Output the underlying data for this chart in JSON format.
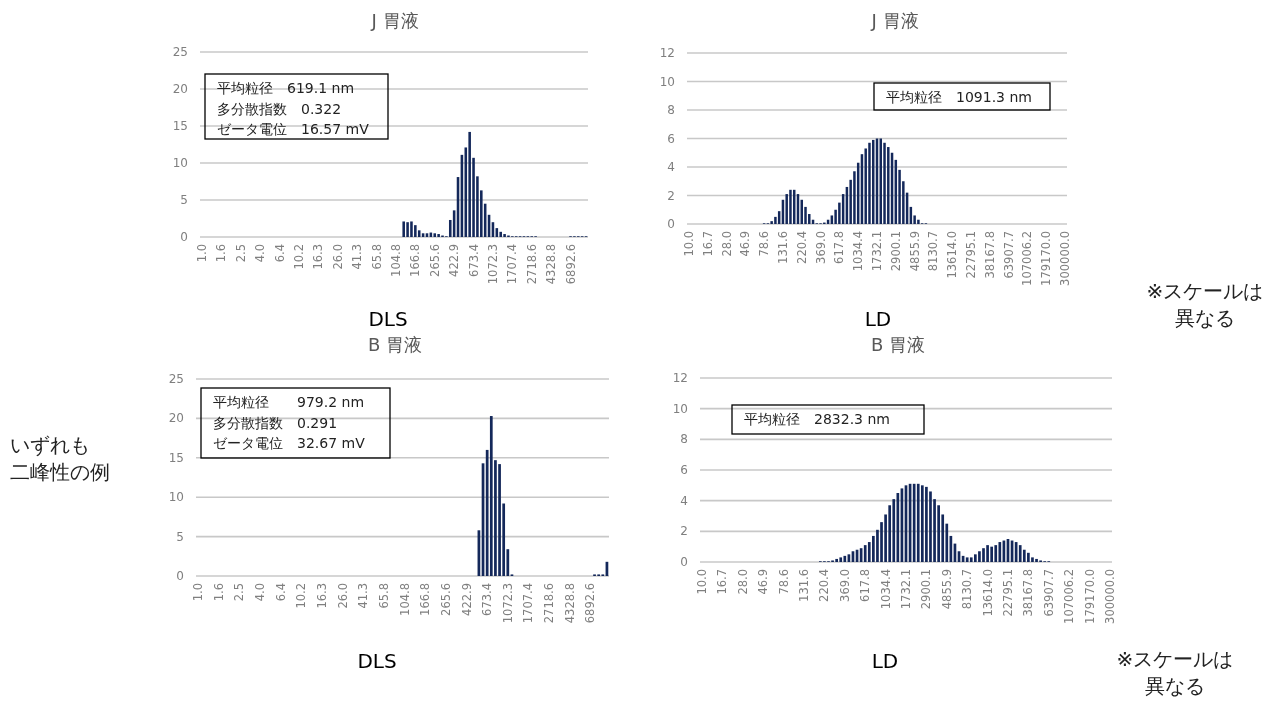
{
  "chart_data": [
    {
      "type": "bar",
      "title": "J 胃液",
      "xlabel": "DLS",
      "color": "#14285a",
      "grid": "y",
      "ylim": [
        0,
        25
      ],
      "yticks": [
        0,
        5,
        10,
        15,
        20,
        25
      ],
      "annotations": [
        "平均粒径　619.1 nm",
        "多分散指数　0.322",
        "ゼータ電位　16.57 mV"
      ],
      "categories": [
        "1.0",
        null,
        null,
        null,
        null,
        "1.6",
        null,
        null,
        null,
        null,
        "2.5",
        null,
        null,
        null,
        null,
        "4.0",
        null,
        null,
        null,
        null,
        "6.4",
        null,
        null,
        null,
        null,
        "10.2",
        null,
        null,
        null,
        null,
        "16.3",
        null,
        null,
        null,
        null,
        "26.0",
        null,
        null,
        null,
        null,
        "41.3",
        null,
        null,
        null,
        null,
        "65.8",
        null,
        null,
        null,
        null,
        "104.8",
        null,
        null,
        null,
        null,
        "166.8",
        null,
        null,
        null,
        null,
        "265.6",
        null,
        null,
        null,
        null,
        "422.9",
        null,
        null,
        null,
        null,
        "673.4",
        null,
        null,
        null,
        null,
        "1072.3",
        null,
        null,
        null,
        null,
        "1707.4",
        null,
        null,
        null,
        null,
        "2718.6",
        null,
        null,
        null,
        null,
        "4328.8",
        null,
        null,
        null,
        null,
        "6892.6",
        null,
        null,
        null,
        null
      ],
      "values": [
        0,
        0,
        0,
        0,
        0,
        0,
        0,
        0,
        0,
        0,
        0,
        0,
        0,
        0,
        0,
        0,
        0,
        0,
        0,
        0,
        0,
        0,
        0,
        0,
        0,
        0,
        0,
        0,
        0,
        0,
        0,
        0,
        0,
        0,
        0,
        0,
        0,
        0,
        0,
        0,
        0,
        0,
        0,
        0,
        0,
        0,
        0,
        0,
        0,
        0,
        0,
        0,
        2.1,
        2.0,
        2.1,
        1.6,
        0.9,
        0.5,
        0.5,
        0.6,
        0.5,
        0.4,
        0.2,
        0.1,
        2.3,
        3.6,
        8.1,
        11.1,
        12.1,
        14.2,
        10.7,
        8.2,
        6.3,
        4.5,
        3.0,
        2.0,
        1.2,
        0.7,
        0.4,
        0.2,
        0.1,
        0.1,
        0.1,
        0.1,
        0.1,
        0.1,
        0.1,
        0,
        0,
        0,
        0,
        0,
        0,
        0,
        0,
        0.1,
        0.1,
        0.1,
        0.1,
        0.1
      ]
    },
    {
      "type": "bar",
      "title": "J 胃液",
      "xlabel": "LD",
      "color": "#14285a",
      "grid": "y",
      "ylim": [
        0,
        12
      ],
      "yticks": [
        0,
        2,
        4,
        6,
        8,
        10,
        12
      ],
      "annotations": [
        "平均粒径　1091.3 nm",
        "※スケールは",
        "異なる"
      ],
      "categories": [
        "10.0",
        null,
        null,
        null,
        null,
        "16.7",
        null,
        null,
        null,
        null,
        "28.0",
        null,
        null,
        null,
        null,
        "46.9",
        null,
        null,
        null,
        null,
        "78.6",
        null,
        null,
        null,
        null,
        "131.6",
        null,
        null,
        null,
        null,
        "220.4",
        null,
        null,
        null,
        null,
        "369.0",
        null,
        null,
        null,
        null,
        "617.8",
        null,
        null,
        null,
        null,
        "1034.4",
        null,
        null,
        null,
        null,
        "1732.1",
        null,
        null,
        null,
        null,
        "2900.1",
        null,
        null,
        null,
        null,
        "4855.9",
        null,
        null,
        null,
        null,
        "8130.7",
        null,
        null,
        null,
        null,
        "13614.0",
        null,
        null,
        null,
        null,
        "22795.1",
        null,
        null,
        null,
        null,
        "38167.8",
        null,
        null,
        null,
        null,
        "63907.7",
        null,
        null,
        null,
        null,
        "107006.2",
        null,
        null,
        null,
        null,
        "179170.0",
        null,
        null,
        null,
        null,
        "300000.0"
      ],
      "values": [
        0,
        0,
        0,
        0,
        0,
        0,
        0,
        0,
        0,
        0,
        0,
        0,
        0,
        0,
        0,
        0,
        0,
        0,
        0,
        0,
        0.05,
        0.05,
        0.2,
        0.5,
        0.9,
        1.7,
        2.1,
        2.4,
        2.4,
        2.1,
        1.7,
        1.2,
        0.7,
        0.3,
        0.05,
        0.05,
        0.1,
        0.3,
        0.6,
        1.0,
        1.5,
        2.1,
        2.6,
        3.1,
        3.7,
        4.3,
        4.9,
        5.3,
        5.7,
        5.9,
        6.0,
        6.0,
        5.7,
        5.4,
        5.0,
        4.5,
        3.8,
        3.0,
        2.2,
        1.2,
        0.6,
        0.3,
        0.05,
        0.05,
        0,
        0,
        0,
        0,
        0,
        0,
        0,
        0,
        0,
        0,
        0,
        0,
        0,
        0,
        0,
        0,
        0,
        0,
        0,
        0,
        0,
        0,
        0,
        0,
        0,
        0,
        0,
        0,
        0,
        0,
        0,
        0,
        0,
        0,
        0,
        0,
        0
      ]
    },
    {
      "type": "bar",
      "title": "B 胃液",
      "xlabel": "DLS",
      "color": "#14285a",
      "grid": "y",
      "ylim": [
        0,
        25
      ],
      "yticks": [
        0,
        5,
        10,
        15,
        20,
        25
      ],
      "annotations": [
        "平均粒径　　979.2 nm",
        "多分散指数　0.291",
        "ゼータ電位　32.67 mV",
        "いずれも",
        "二峰性の例"
      ],
      "categories": [
        "1.0",
        null,
        null,
        null,
        null,
        "1.6",
        null,
        null,
        null,
        null,
        "2.5",
        null,
        null,
        null,
        null,
        "4.0",
        null,
        null,
        null,
        null,
        "6.4",
        null,
        null,
        null,
        null,
        "10.2",
        null,
        null,
        null,
        null,
        "16.3",
        null,
        null,
        null,
        null,
        "26.0",
        null,
        null,
        null,
        null,
        "41.3",
        null,
        null,
        null,
        null,
        "65.8",
        null,
        null,
        null,
        null,
        "104.8",
        null,
        null,
        null,
        null,
        "166.8",
        null,
        null,
        null,
        null,
        "265.6",
        null,
        null,
        null,
        null,
        "422.9",
        null,
        null,
        null,
        null,
        "673.4",
        null,
        null,
        null,
        null,
        "1072.3",
        null,
        null,
        null,
        null,
        "1707.4",
        null,
        null,
        null,
        null,
        "2718.6",
        null,
        null,
        null,
        null,
        "4328.8",
        null,
        null,
        null,
        null,
        "6892.6",
        null,
        null,
        null,
        null
      ],
      "values": [
        0,
        0,
        0,
        0,
        0,
        0,
        0,
        0,
        0,
        0,
        0,
        0,
        0,
        0,
        0,
        0,
        0,
        0,
        0,
        0,
        0,
        0,
        0,
        0,
        0,
        0,
        0,
        0,
        0,
        0,
        0,
        0,
        0,
        0,
        0,
        0,
        0,
        0,
        0,
        0,
        0,
        0,
        0,
        0,
        0,
        0,
        0,
        0,
        0,
        0,
        0,
        0,
        0,
        0,
        0,
        0,
        0,
        0,
        0,
        0,
        0,
        0,
        0,
        0,
        0,
        0,
        0,
        0,
        5.8,
        14.3,
        16.0,
        20.3,
        14.7,
        14.2,
        9.2,
        3.4,
        0.2,
        0,
        0,
        0,
        0,
        0,
        0,
        0,
        0,
        0,
        0,
        0,
        0,
        0,
        0,
        0,
        0,
        0,
        0,
        0,
        0.2,
        0.2,
        0.2,
        1.8
      ]
    },
    {
      "type": "bar",
      "title": "B 胃液",
      "xlabel": "LD",
      "color": "#14285a",
      "grid": "y",
      "ylim": [
        0,
        12
      ],
      "yticks": [
        0,
        2,
        4,
        6,
        8,
        10,
        12
      ],
      "annotations": [
        "平均粒径　2832.3 nm",
        "※スケールは",
        "異なる"
      ],
      "categories": [
        "10.0",
        null,
        null,
        null,
        null,
        "16.7",
        null,
        null,
        null,
        null,
        "28.0",
        null,
        null,
        null,
        null,
        "46.9",
        null,
        null,
        null,
        null,
        "78.6",
        null,
        null,
        null,
        null,
        "131.6",
        null,
        null,
        null,
        null,
        "220.4",
        null,
        null,
        null,
        null,
        "369.0",
        null,
        null,
        null,
        null,
        "617.8",
        null,
        null,
        null,
        null,
        "1034.4",
        null,
        null,
        null,
        null,
        "1732.1",
        null,
        null,
        null,
        null,
        "2900.1",
        null,
        null,
        null,
        null,
        "4855.9",
        null,
        null,
        null,
        null,
        "8130.7",
        null,
        null,
        null,
        null,
        "13614.0",
        null,
        null,
        null,
        null,
        "22795.1",
        null,
        null,
        null,
        null,
        "38167.8",
        null,
        null,
        null,
        null,
        "63907.7",
        null,
        null,
        null,
        null,
        "107006.2",
        null,
        null,
        null,
        null,
        "179170.0",
        null,
        null,
        null,
        null,
        "300000.0"
      ],
      "values": [
        0,
        0,
        0,
        0,
        0,
        0,
        0,
        0,
        0,
        0,
        0,
        0,
        0,
        0,
        0,
        0,
        0,
        0,
        0,
        0,
        0,
        0,
        0,
        0,
        0,
        0,
        0,
        0,
        0,
        0.05,
        0.05,
        0.05,
        0.1,
        0.2,
        0.3,
        0.4,
        0.5,
        0.7,
        0.8,
        0.9,
        1.1,
        1.3,
        1.7,
        2.1,
        2.6,
        3.1,
        3.7,
        4.1,
        4.5,
        4.8,
        5.0,
        5.1,
        5.1,
        5.1,
        5.0,
        4.9,
        4.6,
        4.1,
        3.7,
        3.1,
        2.5,
        1.7,
        1.2,
        0.7,
        0.4,
        0.3,
        0.3,
        0.5,
        0.7,
        0.9,
        1.1,
        1.0,
        1.1,
        1.3,
        1.4,
        1.5,
        1.4,
        1.3,
        1.1,
        0.8,
        0.6,
        0.3,
        0.2,
        0.1,
        0.05,
        0.05,
        0,
        0,
        0,
        0,
        0,
        0,
        0,
        0,
        0,
        0,
        0,
        0,
        0,
        0,
        0
      ]
    }
  ]
}
